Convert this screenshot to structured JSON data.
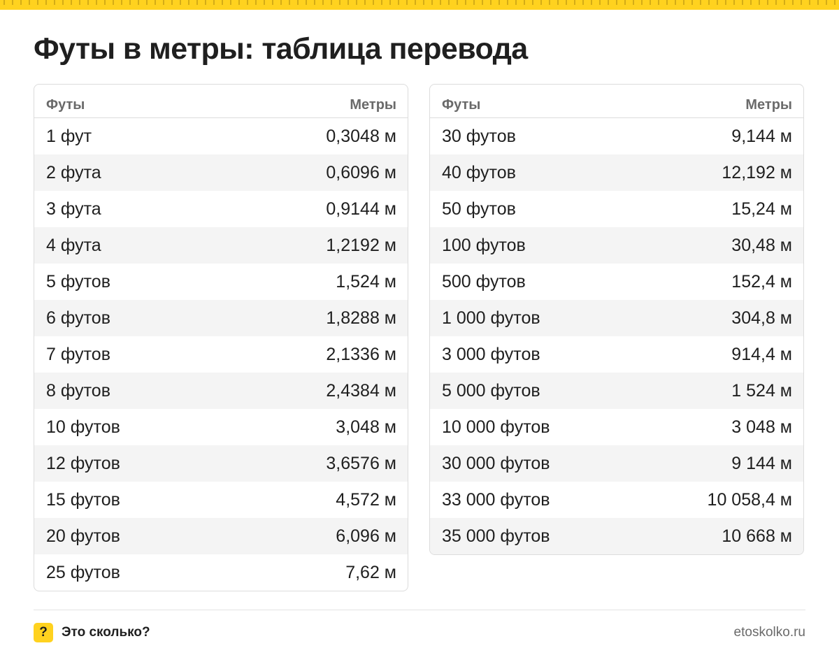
{
  "colors": {
    "accent": "#ffd21f",
    "text": "#1f1f1f",
    "muted": "#6a6a6a",
    "border": "#dcdcdc",
    "row_alt": "#f4f4f4"
  },
  "title": "Футы в метры: таблица перевода",
  "tables": {
    "left": {
      "headers": {
        "feet": "Футы",
        "meters": "Метры"
      },
      "rows": [
        {
          "feet": "1 фут",
          "meters": "0,3048 м"
        },
        {
          "feet": "2 фута",
          "meters": "0,6096 м"
        },
        {
          "feet": "3 фута",
          "meters": "0,9144 м"
        },
        {
          "feet": "4 фута",
          "meters": "1,2192 м"
        },
        {
          "feet": "5 футов",
          "meters": "1,524 м"
        },
        {
          "feet": "6 футов",
          "meters": "1,8288 м"
        },
        {
          "feet": "7 футов",
          "meters": "2,1336 м"
        },
        {
          "feet": "8 футов",
          "meters": "2,4384 м"
        },
        {
          "feet": "10 футов",
          "meters": "3,048 м"
        },
        {
          "feet": "12 футов",
          "meters": "3,6576 м"
        },
        {
          "feet": "15 футов",
          "meters": "4,572 м"
        },
        {
          "feet": "20 футов",
          "meters": "6,096 м"
        },
        {
          "feet": "25 футов",
          "meters": "7,62 м"
        }
      ]
    },
    "right": {
      "headers": {
        "feet": "Футы",
        "meters": "Метры"
      },
      "rows": [
        {
          "feet": "30 футов",
          "meters": "9,144 м"
        },
        {
          "feet": "40 футов",
          "meters": "12,192 м"
        },
        {
          "feet": "50 футов",
          "meters": "15,24 м"
        },
        {
          "feet": "100 футов",
          "meters": "30,48 м"
        },
        {
          "feet": "500 футов",
          "meters": "152,4 м"
        },
        {
          "feet": "1 000 футов",
          "meters": "304,8 м"
        },
        {
          "feet": "3 000 футов",
          "meters": "914,4 м"
        },
        {
          "feet": "5 000 футов",
          "meters": "1 524 м"
        },
        {
          "feet": "10 000 футов",
          "meters": "3 048 м"
        },
        {
          "feet": "30 000 футов",
          "meters": "9 144 м"
        },
        {
          "feet": "33 000 футов",
          "meters": "10 058,4 м"
        },
        {
          "feet": "35 000 футов",
          "meters": "10 668 м"
        }
      ]
    }
  },
  "footer": {
    "badge_icon": "question-mark-icon",
    "badge_symbol": "?",
    "brand": "Это сколько?",
    "site": "etoskolko.ru"
  }
}
